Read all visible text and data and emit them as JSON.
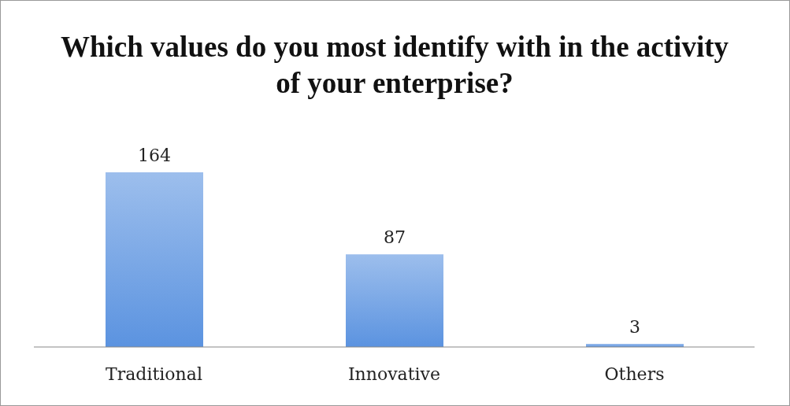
{
  "chart_data": {
    "type": "bar",
    "title": "Which values do you most identify with in the activity of your enterprise?",
    "categories": [
      "Traditional",
      "Innovative",
      "Others"
    ],
    "values": [
      164,
      87,
      3
    ],
    "color": "#5b93e0",
    "data_labels": true
  }
}
